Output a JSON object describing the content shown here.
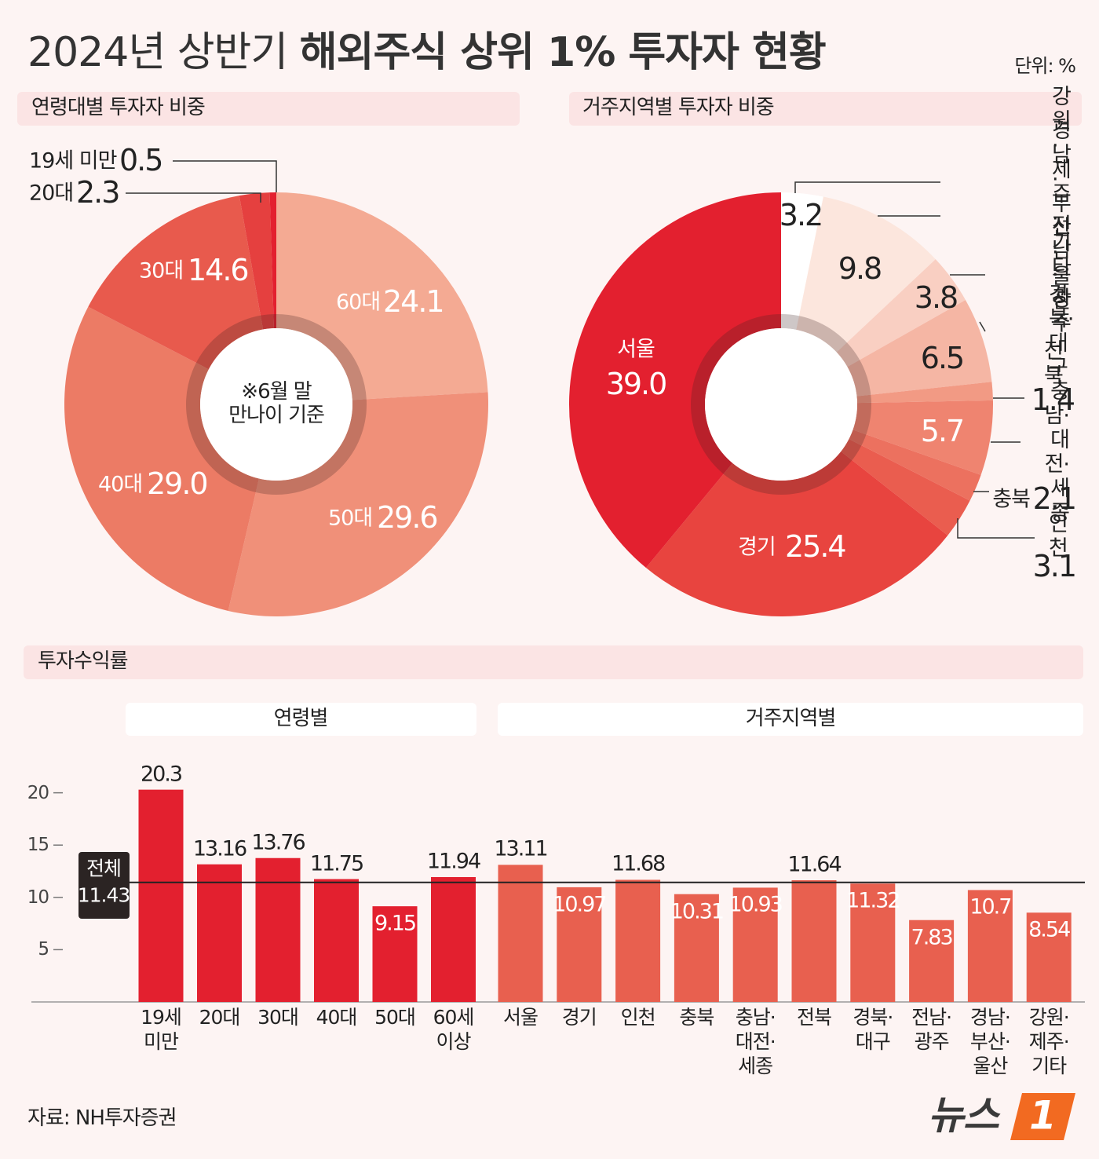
{
  "header": {
    "title_light": "2024년 상반기",
    "title_bold": "해외주식 상위 1% 투자자 현황",
    "unit": "단위: %"
  },
  "chart_data": [
    {
      "type": "donut",
      "title": "연령대별 투자자 비중",
      "note": "※6월 말\n만나이 기준",
      "categories": [
        "60대",
        "50대",
        "40대",
        "30대",
        "20대",
        "19세 미만"
      ],
      "values": [
        24.1,
        29.6,
        29.0,
        14.6,
        2.3,
        0.5
      ],
      "value_labels": [
        "24.1",
        "29.6",
        "29.0",
        "14.6",
        "2.3",
        "0.5"
      ],
      "colors": [
        "#f4aa93",
        "#f09079",
        "#ec7b65",
        "#e85a4d",
        "#e5403f",
        "#e3202f"
      ]
    },
    {
      "type": "donut",
      "title": "거주지역별 투자자 비중",
      "categories": [
        "강원·제주·기타",
        "경남·부산·울산",
        "전남·광주",
        "경북·대구",
        "전북",
        "충남·\n대전·세종",
        "충북",
        "인천",
        "경기",
        "서울"
      ],
      "values": [
        3.2,
        9.8,
        3.8,
        6.5,
        1.4,
        5.7,
        2.1,
        3.1,
        25.4,
        39.0
      ],
      "value_labels": [
        "3.2",
        "9.8",
        "3.8",
        "6.5",
        "1.4",
        "5.7",
        "2.1",
        "3.1",
        "25.4",
        "39.0"
      ],
      "colors": [
        "#ffffff",
        "#fce6dd",
        "#f9cfc2",
        "#f5b6a4",
        "#f29a84",
        "#ef8470",
        "#ec715f",
        "#ea5d4f",
        "#e8443f",
        "#e3202f"
      ]
    },
    {
      "type": "bar",
      "title": "투자수익률",
      "groups": [
        {
          "name": "연령별",
          "color": "#e3202f",
          "categories": [
            "19세\n미만",
            "20대",
            "30대",
            "40대",
            "50대",
            "60세\n이상"
          ],
          "values": [
            20.3,
            13.16,
            13.76,
            11.75,
            9.15,
            11.94
          ]
        },
        {
          "name": "거주지역별",
          "color": "#e8604f",
          "categories": [
            "서울",
            "경기",
            "인천",
            "충북",
            "충남·\n대전·\n세종",
            "전북",
            "경북·\n대구",
            "전남·\n광주",
            "경남·\n부산·\n울산",
            "강원·\n제주·\n기타"
          ],
          "values": [
            13.11,
            10.97,
            11.68,
            10.31,
            10.93,
            11.64,
            11.32,
            7.83,
            10.7,
            8.54
          ]
        }
      ],
      "reference": {
        "label": "전체",
        "value": 11.43
      },
      "ylim": [
        0,
        22
      ],
      "yticks": [
        5,
        10,
        15,
        20
      ]
    }
  ],
  "footer": {
    "source": "자료: NH투자증권",
    "logo_text": "뉴스",
    "logo_mark": "1"
  }
}
